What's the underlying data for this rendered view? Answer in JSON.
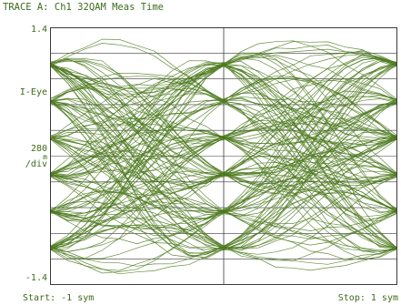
{
  "header": {
    "title": "TRACE A: Ch1 32QAM Meas Time"
  },
  "axes": {
    "y_top_label": "1.4",
    "y_bottom_label": "-1.4",
    "ref_label": "I-Eye",
    "scale_value": "280",
    "scale_unit": "m",
    "scale_per": "/div"
  },
  "footer": {
    "start": "Start: -1 sym",
    "stop": "Stop: 1 sym"
  },
  "colors": {
    "trace": "#4d7a1e",
    "grid": "#3a3a3a",
    "text": "#3d6a1c"
  },
  "chart_data": {
    "type": "line",
    "title": "TRACE A: Ch1 32QAM Meas Time",
    "xlim": [
      -1,
      1
    ],
    "ylim": [
      -1.4,
      1.4
    ],
    "x_unit": "sym",
    "y_divisions": 10,
    "grid": true,
    "eye_levels": [
      1.0,
      0.6,
      0.2,
      -0.2,
      -0.6,
      -1.0
    ],
    "symbol_instants": [
      -1,
      0,
      1
    ],
    "overshoot_peak": 1.35,
    "overshoot_trough": -1.3,
    "trace_count": 140
  }
}
